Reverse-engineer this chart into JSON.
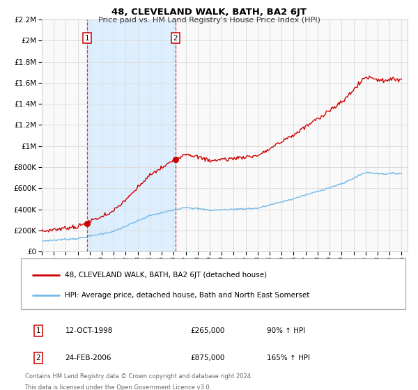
{
  "title": "48, CLEVELAND WALK, BATH, BA2 6JT",
  "subtitle": "Price paid vs. HM Land Registry's House Price Index (HPI)",
  "sale1_date_num": 1998.79,
  "sale1_price": 265000,
  "sale1_label": "12-OCT-1998",
  "sale1_pct": "90%",
  "sale2_date_num": 2006.15,
  "sale2_price": 875000,
  "sale2_label": "24-FEB-2006",
  "sale2_pct": "165%",
  "legend_line1": "48, CLEVELAND WALK, BATH, BA2 6JT (detached house)",
  "legend_line2": "HPI: Average price, detached house, Bath and North East Somerset",
  "footnote1": "Contains HM Land Registry data © Crown copyright and database right 2024.",
  "footnote2": "This data is licensed under the Open Government Licence v3.0.",
  "xmin": 1995.0,
  "xmax": 2025.5,
  "ymin": 0,
  "ymax": 2200000,
  "hpi_color": "#74b9e8",
  "price_color": "#cc0000",
  "shade_color": "#ddeeff",
  "grid_color": "#dddddd",
  "bg_color": "#f9f9f9"
}
